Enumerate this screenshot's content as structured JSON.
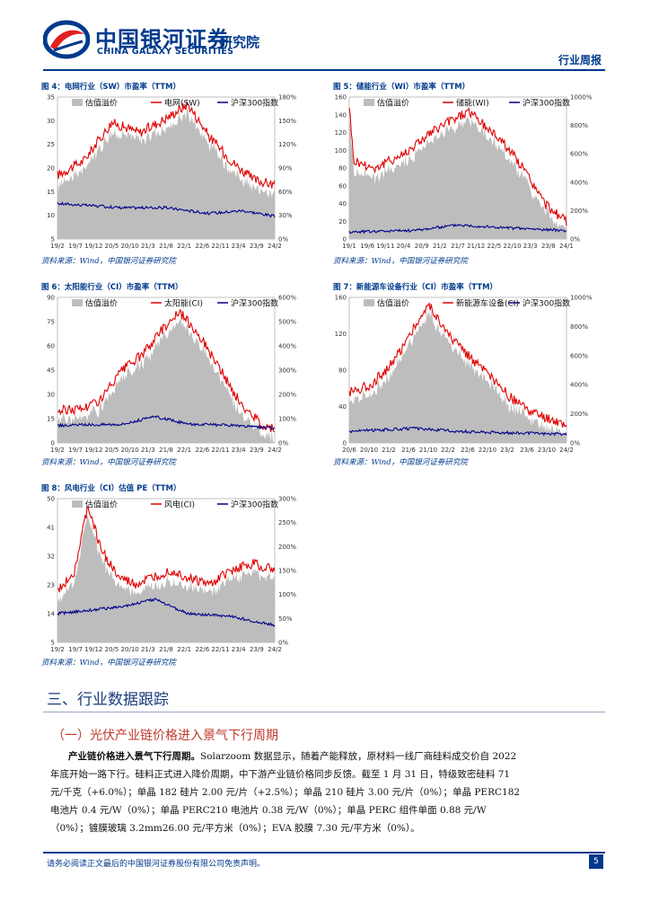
{
  "header": {
    "company_cn": "中国银河证券",
    "company_en": "CHINA GALAXY SECURITIES",
    "institute": "研究院",
    "report_type": "行业周报"
  },
  "colors": {
    "brand": "#003a8c",
    "series_industry": "#e00000",
    "series_hs300": "#00008b",
    "area": "#bdbdbd",
    "subtitle": "#c0392b"
  },
  "figures": [
    {
      "title": "图 4：电网行业（SW）市盈率（TTM）",
      "source": "资料来源：Wind，中国银河证券研究院",
      "legend": [
        "估值溢价",
        "电网(SW)",
        "沪深300指数"
      ],
      "left_ticks": [
        "35",
        "30",
        "25",
        "20",
        "15",
        "10",
        "5"
      ],
      "right_ticks": [
        "180%",
        "150%",
        "120%",
        "90%",
        "60%",
        "30%",
        "0%"
      ],
      "x_ticks": [
        "19/2",
        "19/7",
        "19/12",
        "20/5",
        "20/10",
        "21/3",
        "21/8",
        "22/1",
        "22/6",
        "22/11",
        "23/4",
        "23/9",
        "24/2"
      ]
    },
    {
      "title": "图 5：储能行业（WI）市盈率（TTM）",
      "source": "资料来源：Wind，中国银河证券研究院",
      "legend": [
        "估值溢价",
        "储能(WI)",
        "沪深300指数"
      ],
      "left_ticks": [
        "160",
        "140",
        "120",
        "100",
        "80",
        "60",
        "40",
        "20",
        "0"
      ],
      "right_ticks": [
        "1000%",
        "800%",
        "600%",
        "400%",
        "200%",
        "0%"
      ],
      "x_ticks": [
        "19/1",
        "19/6",
        "19/11",
        "20/4",
        "20/9",
        "21/2",
        "21/7",
        "21/12",
        "22/5",
        "22/10",
        "23/3",
        "23/8",
        "24/1"
      ]
    },
    {
      "title": "图 6：太阳能行业（CI）市盈率（TTM）",
      "source": "资料来源：Wind，中国银河证券研究院",
      "legend": [
        "估值溢价",
        "太阳能(CI)",
        "沪深300指数"
      ],
      "left_ticks": [
        "90",
        "75",
        "60",
        "45",
        "30",
        "15",
        "0"
      ],
      "right_ticks": [
        "600%",
        "500%",
        "400%",
        "300%",
        "200%",
        "100%",
        "0%"
      ],
      "x_ticks": [
        "19/2",
        "19/7",
        "19/12",
        "20/5",
        "20/10",
        "21/3",
        "21/8",
        "22/1",
        "22/6",
        "22/11",
        "23/4",
        "23/9",
        "24/2"
      ]
    },
    {
      "title": "图 7：新能源车设备行业（CI）市盈率（TTM）",
      "source": "资料来源：Wind，中国银河证券研究院",
      "legend": [
        "估值溢价",
        "新能源车设备(CI)",
        "沪深300指数"
      ],
      "left_ticks": [
        "160",
        "120",
        "80",
        "40",
        "0"
      ],
      "right_ticks": [
        "1000%",
        "800%",
        "600%",
        "400%",
        "200%",
        "0%"
      ],
      "x_ticks": [
        "20/6",
        "20/10",
        "21/2",
        "21/6",
        "21/10",
        "22/2",
        "22/6",
        "22/10",
        "23/2",
        "23/6",
        "23/10",
        "24/2"
      ]
    },
    {
      "title": "图 8：风电行业（CI）估值 PE（TTM）",
      "source": "资料来源：Wind，中国银河证券研究院",
      "legend": [
        "估值溢价",
        "风电(CI)",
        "沪深300指数"
      ],
      "left_ticks": [
        "50",
        "41",
        "32",
        "23",
        "14",
        "5"
      ],
      "right_ticks": [
        "300%",
        "250%",
        "200%",
        "150%",
        "100%",
        "50%",
        "0%"
      ],
      "x_ticks": [
        "19/2",
        "19/7",
        "19/12",
        "20/5",
        "20/10",
        "21/3",
        "21/8",
        "22/1",
        "22/6",
        "22/11",
        "23/4",
        "23/9",
        "24/2"
      ]
    }
  ],
  "section": {
    "title": "三、行业数据跟踪",
    "subtitle": "（一）光伏产业链价格进入景气下行周期",
    "para_lead": "产业链价格进入景气下行周期。",
    "para_body": "Solarzoom 数据显示，随着产能释放，原材料一线厂商硅料成交价自 2022 年底开始一路下行。硅料正式进入降价周期，中下游产业链价格同步反馈。截至 1 月 31 日，特级致密硅料 71 元/千克（+6.0%）；单晶 182 硅片 2.00 元/片（+2.5%）；单晶 210 硅片 3.00 元/片（0%）；单晶 PERC182 电池片 0.4 元/W（0%）；单晶 PERC210 电池片 0.38 元/W（0%）；单晶 PERC 组件单面 0.88 元/W（0%）；镀膜玻璃 3.2mm26.00 元/平方米（0%）；EVA 胶膜 7.30 元/平方米（0%）。"
  },
  "footer": {
    "disclaimer": "请务必阅读正文最后的中国银河证券股份有限公司免责声明。",
    "page": "5"
  }
}
